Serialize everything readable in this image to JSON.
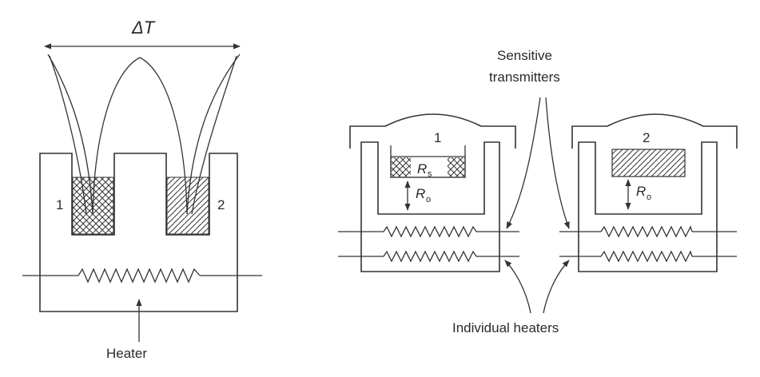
{
  "left_diagram": {
    "delta_label": "ΔT",
    "sample1_label": "1",
    "sample2_label": "2",
    "heater_label": "Heater"
  },
  "right_diagram": {
    "sensor_label_line1": "Sensitive",
    "sensor_label_line2": "transmitters",
    "holder1_label": "1",
    "holder2_label": "2",
    "rs_main": "R",
    "rs_sub": "s",
    "ro_main": "R",
    "ro_sub": "o",
    "heaters_label": "Individual heaters"
  },
  "colors": {
    "ink": "#333333",
    "background": "#ffffff"
  }
}
